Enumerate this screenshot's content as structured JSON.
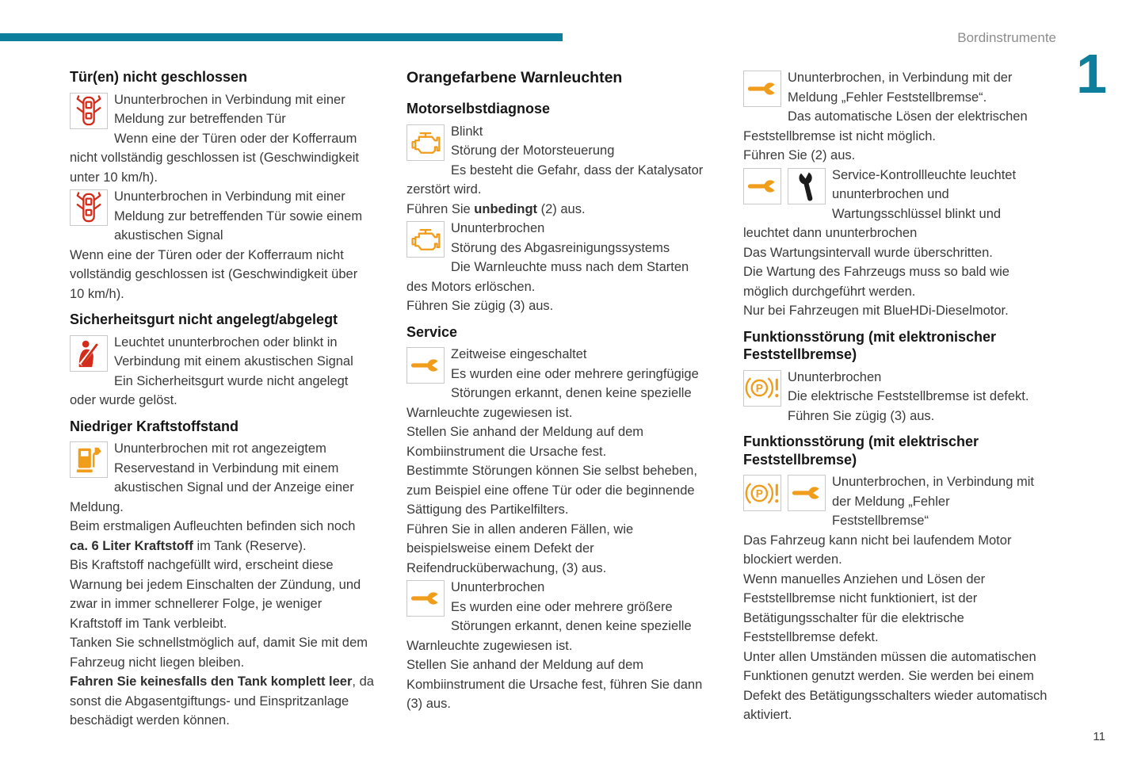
{
  "page": {
    "header_title": "Bordinstrumente",
    "chapter_number": "1",
    "page_number": "11",
    "accent_color": "#0e7e9d",
    "warning_red": "#d32c1a",
    "warning_orange": "#f09d1c"
  },
  "icons": {
    "door-open-warning-icon": {
      "description": "car top view with open doors",
      "color": "#d32c1a"
    },
    "seatbelt-warning-icon": {
      "description": "seated person with seatbelt",
      "color": "#d32c1a"
    },
    "fuel-pump-icon": {
      "description": "fuel pump with nozzle",
      "color": "#f09d1c"
    },
    "engine-warning-icon": {
      "description": "check engine outline",
      "color": "#f09d1c"
    },
    "service-wrench-icon": {
      "description": "horizontal open-end wrench",
      "color": "#f09d1c"
    },
    "maintenance-wrench-icon": {
      "description": "vertical open-end wrench",
      "color": "#1c1c1c"
    },
    "parking-brake-fault-icon": {
      "description": "(P)! electric parking brake fault",
      "color": "#f09d1c"
    }
  },
  "columns": [
    {
      "blocks": [
        {
          "type": "heading",
          "text": "Tür(en) nicht geschlossen"
        },
        {
          "type": "item",
          "icons": [
            "door-open-warning-icon"
          ],
          "lines": [
            "Ununterbrochen in Verbindung mit einer Meldung zur betreffenden Tür",
            "Wenn eine der Türen oder der Kofferraum nicht vollständig geschlossen ist (Geschwindigkeit unter 10 km/h)."
          ]
        },
        {
          "type": "item",
          "icons": [
            "door-open-warning-icon"
          ],
          "lines": [
            "Ununterbrochen in Verbindung mit einer Meldung zur betreffenden Tür sowie einem akustischen Signal",
            "Wenn eine der Türen oder der Kofferraum nicht vollständig geschlossen ist (Geschwindigkeit über 10 km/h)."
          ]
        },
        {
          "type": "heading",
          "text": "Sicherheitsgurt nicht angelegt/abgelegt"
        },
        {
          "type": "item",
          "icons": [
            "seatbelt-warning-icon"
          ],
          "lines": [
            "Leuchtet ununterbrochen oder blinkt in Verbindung mit einem akustischen Signal",
            "Ein Sicherheitsgurt wurde nicht angelegt oder wurde gelöst."
          ]
        },
        {
          "type": "heading",
          "text": "Niedriger Kraftstoffstand"
        },
        {
          "type": "item",
          "icons": [
            "fuel-pump-icon"
          ],
          "lines": [
            "Ununterbrochen mit rot angezeigtem Reservestand in Verbindung mit einem akustischen Signal und der Anzeige einer Meldung.",
            "Beim erstmaligen Aufleuchten befinden sich noch **ca. 6 Liter Kraftstoff** im Tank (Reserve).",
            "Bis Kraftstoff nachgefüllt wird, erscheint diese Warnung bei jedem Einschalten der Zündung, und zwar in immer schnellerer Folge, je weniger Kraftstoff im Tank verbleibt.",
            "Tanken Sie schnellstmöglich auf, damit Sie mit dem Fahrzeug nicht liegen bleiben.",
            "**Fahren Sie keinesfalls den Tank komplett leer**, da sonst die Abgasentgiftungs- und Einspritzanlage beschädigt werden können."
          ]
        }
      ]
    },
    {
      "blocks": [
        {
          "type": "section_heading",
          "text": "Orangefarbene Warnleuchten"
        },
        {
          "type": "heading",
          "text": "Motorselbstdiagnose"
        },
        {
          "type": "item",
          "icons": [
            "engine-warning-icon"
          ],
          "lines": [
            "Blinkt",
            "Störung der Motorsteuerung",
            "Es besteht die Gefahr, dass der Katalysator zerstört wird.",
            "Führen Sie **unbedingt** (2) aus."
          ]
        },
        {
          "type": "item",
          "icons": [
            "engine-warning-icon"
          ],
          "lines": [
            "Ununterbrochen",
            "Störung des Abgasreinigungssystems",
            "Die Warnleuchte muss nach dem Starten des Motors erlöschen.",
            "Führen Sie zügig (3) aus."
          ]
        },
        {
          "type": "heading",
          "text": "Service"
        },
        {
          "type": "item",
          "icons": [
            "service-wrench-icon"
          ],
          "lines": [
            "Zeitweise eingeschaltet",
            "Es wurden eine oder mehrere geringfügige Störungen erkannt, denen keine spezielle Warnleuchte zugewiesen ist.",
            "Stellen Sie anhand der Meldung auf dem Kombiinstrument die Ursache fest.",
            "Bestimmte Störungen können Sie selbst beheben, zum Beispiel eine offene Tür oder die beginnende Sättigung des Partikelfilters.",
            "Führen Sie in allen anderen Fällen, wie beispielsweise einem Defekt der Reifendrucküberwachung, (3) aus."
          ]
        },
        {
          "type": "item",
          "icons": [
            "service-wrench-icon"
          ],
          "lines": [
            "Ununterbrochen",
            "Es wurden eine oder mehrere größere Störungen erkannt, denen keine spezielle Warnleuchte zugewiesen ist.",
            "Stellen Sie anhand der Meldung auf dem Kombiinstrument die Ursache fest, führen Sie dann (3) aus."
          ]
        }
      ]
    },
    {
      "blocks": [
        {
          "type": "item",
          "icons": [
            "service-wrench-icon"
          ],
          "lines": [
            "Ununterbrochen, in Verbindung mit der Meldung „Fehler Feststellbremse“.",
            "Das automatische Lösen der elektrischen Feststellbremse ist nicht möglich.",
            "Führen Sie (2) aus."
          ]
        },
        {
          "type": "item",
          "icons": [
            "service-wrench-icon",
            "maintenance-wrench-icon"
          ],
          "lines": [
            "Service-Kontrollleuchte leuchtet ununterbrochen und",
            "Wartungsschlüssel blinkt und leuchtet dann ununterbrochen",
            "Das Wartungsintervall wurde überschritten.",
            "Die Wartung des Fahrzeugs muss so bald wie möglich durchgeführt werden.",
            "Nur bei Fahrzeugen mit BlueHDi-Dieselmotor."
          ]
        },
        {
          "type": "heading",
          "text": "Funktionsstörung (mit elektronischer Feststellbremse)"
        },
        {
          "type": "item",
          "icons": [
            "parking-brake-fault-icon"
          ],
          "lines": [
            "Ununterbrochen",
            "Die elektrische Feststellbremse ist defekt.",
            "Führen Sie zügig (3) aus."
          ]
        },
        {
          "type": "heading",
          "text": "Funktionsstörung (mit elektrischer Feststellbremse)"
        },
        {
          "type": "item",
          "icons": [
            "parking-brake-fault-icon",
            "service-wrench-icon"
          ],
          "lines": [
            "Ununterbrochen, in Verbindung mit der Meldung „Fehler Feststellbremse“",
            "Das Fahrzeug kann nicht bei laufendem Motor blockiert werden.",
            "Wenn manuelles Anziehen und Lösen der Feststellbremse nicht funktioniert, ist der Betätigungsschalter für die elektrische Feststellbremse defekt.",
            "Unter allen Umständen müssen die automatischen Funktionen genutzt werden. Sie werden bei einem Defekt des Betätigungsschalters wieder automatisch aktiviert."
          ]
        }
      ]
    }
  ]
}
